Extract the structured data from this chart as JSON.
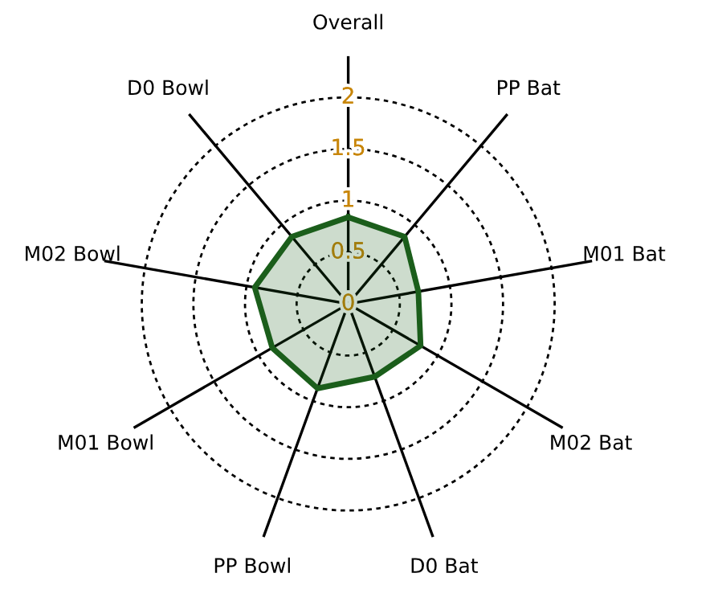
{
  "chart_data": {
    "type": "radar",
    "categories": [
      "Overall",
      "PP Bat",
      "M01 Bat",
      "M02 Bat",
      "D0 Bat",
      "PP Bowl",
      "M01 Bowl",
      "M02 Bowl",
      "D0 Bowl"
    ],
    "series": [
      {
        "color": "#1b5e1b",
        "values": [
          0.84,
          0.85,
          0.69,
          0.81,
          0.75,
          0.87,
          0.85,
          0.92,
          0.85
        ]
      }
    ],
    "ylim": [
      0,
      2.4
    ],
    "yticks": [
      0,
      0.5,
      1,
      1.5,
      2
    ],
    "grid": true,
    "marker": "none",
    "line_style": "solid"
  }
}
